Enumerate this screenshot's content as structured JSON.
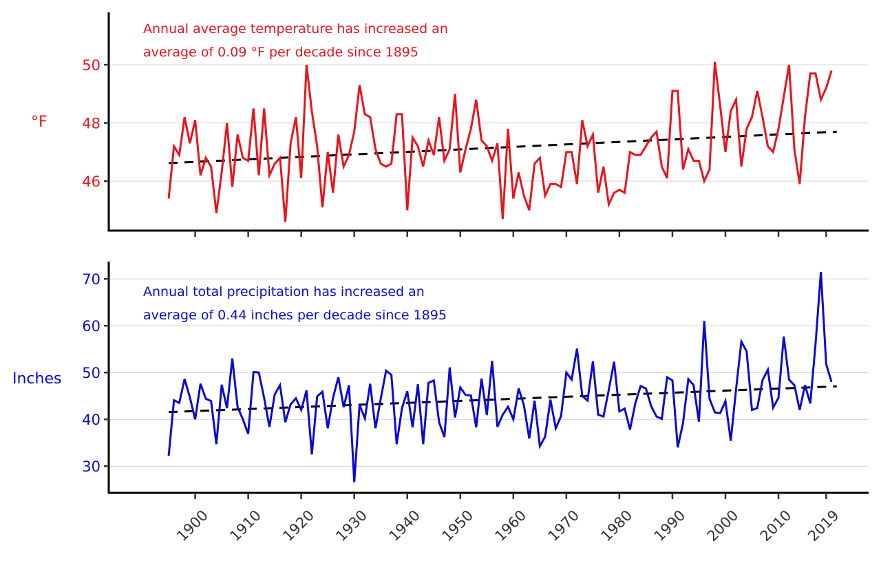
{
  "chart_data": [
    {
      "type": "line",
      "panel": "temperature",
      "title": "",
      "annotation_lines": [
        "Annual average temperature has increased an",
        "average of 0.09 °F per decade since 1895"
      ],
      "ylabel": "°F",
      "xlabel": "",
      "color": "#e8141c",
      "trend_color": "#000000",
      "ylim": [
        44.3,
        51.8
      ],
      "yticks": [
        46,
        48,
        50
      ],
      "ytick_labels": [
        "46",
        "48",
        "50"
      ],
      "grid": "horizontal",
      "x_start": 1895,
      "series": [
        {
          "name": "Annual average temperature",
          "values": [
            45.4,
            47.2,
            46.9,
            48.2,
            47.3,
            48.1,
            46.2,
            46.8,
            46.5,
            44.9,
            46.3,
            48.0,
            45.8,
            47.6,
            46.8,
            46.7,
            48.5,
            46.2,
            48.5,
            46.2,
            46.6,
            46.8,
            44.6,
            47.3,
            48.2,
            46.1,
            50.0,
            48.4,
            47.2,
            45.1,
            47.0,
            45.6,
            47.6,
            46.5,
            46.9,
            47.7,
            49.3,
            48.3,
            48.2,
            47.1,
            46.6,
            46.5,
            46.6,
            48.3,
            48.3,
            45.0,
            47.5,
            47.2,
            46.5,
            47.4,
            46.9,
            48.2,
            46.7,
            47.1,
            49.0,
            46.3,
            47.1,
            47.8,
            48.8,
            47.4,
            47.2,
            46.7,
            47.3,
            44.7,
            47.8,
            45.4,
            46.3,
            45.5,
            45.0,
            46.6,
            46.8,
            45.5,
            45.9,
            45.9,
            45.8,
            47.0,
            47.0,
            45.9,
            48.1,
            47.2,
            47.6,
            45.6,
            46.5,
            45.2,
            45.6,
            45.7,
            45.6,
            47.0,
            46.9,
            46.9,
            47.2,
            47.5,
            47.7,
            46.5,
            46.1,
            49.1,
            49.1,
            46.4,
            47.1,
            46.7,
            46.7,
            46.0,
            46.4,
            50.1,
            48.6,
            47.0,
            48.4,
            48.8,
            46.5,
            47.8,
            48.2,
            49.1,
            48.2,
            47.2,
            47.0,
            47.8,
            48.9,
            50.0,
            47.1,
            45.9,
            48.2,
            49.7,
            49.7,
            48.8,
            49.2,
            49.8
          ]
        },
        {
          "name": "Linear trend",
          "style": "dashed",
          "start": [
            1895,
            46.62
          ],
          "end": [
            2021,
            47.7
          ]
        }
      ]
    },
    {
      "type": "line",
      "panel": "precipitation",
      "title": "",
      "annotation_lines": [
        "Annual total precipitation has increased an",
        "average of 0.44 inches per decade since 1895"
      ],
      "ylabel": "Inches",
      "xlabel": "",
      "color": "#0a0ad2",
      "trend_color": "#000000",
      "ylim": [
        24.3,
        73.7
      ],
      "yticks": [
        30,
        40,
        50,
        60,
        70
      ],
      "ytick_labels": [
        "30",
        "40",
        "50",
        "60",
        "70"
      ],
      "grid": "horizontal",
      "x_start": 1895,
      "series": [
        {
          "name": "Annual total precipitation",
          "values": [
            32.2,
            44.1,
            43.5,
            48.6,
            44.7,
            40.0,
            47.6,
            44.4,
            43.9,
            34.7,
            47.4,
            42.4,
            53.0,
            42.6,
            40.0,
            36.9,
            50.1,
            50.0,
            44.6,
            38.4,
            45.3,
            47.3,
            39.4,
            43.2,
            44.5,
            42.0,
            46.2,
            32.5,
            44.9,
            45.9,
            38.1,
            44.6,
            49.0,
            42.6,
            47.3,
            26.6,
            43.1,
            40.2,
            47.6,
            38.1,
            44.4,
            50.4,
            49.5,
            34.7,
            42.4,
            46.0,
            38.3,
            47.5,
            34.7,
            47.8,
            48.3,
            39.4,
            36.2,
            51.1,
            40.4,
            46.8,
            45.2,
            45.1,
            38.3,
            48.7,
            40.9,
            52.5,
            38.4,
            41.0,
            42.7,
            40.0,
            46.6,
            43.0,
            35.9,
            44.0,
            34.3,
            36.3,
            44.2,
            38.1,
            40.7,
            50.0,
            48.5,
            55.1,
            45.0,
            44.0,
            52.4,
            41.0,
            40.6,
            46.3,
            52.3,
            41.7,
            42.3,
            37.8,
            43.4,
            47.1,
            46.6,
            42.8,
            40.6,
            40.1,
            49.0,
            48.3,
            34.0,
            39.2,
            48.6,
            47.3,
            39.5,
            61.0,
            44.4,
            41.5,
            41.3,
            43.9,
            35.4,
            46.4,
            56.6,
            54.5,
            42.0,
            42.4,
            48.4,
            50.6,
            42.5,
            44.6,
            57.7,
            48.5,
            47.3,
            42.0,
            47.3,
            43.4,
            56.2,
            71.5,
            51.8,
            48.0
          ]
        },
        {
          "name": "Linear trend",
          "style": "dashed",
          "start": [
            1895,
            41.55
          ],
          "end": [
            2021,
            47.05
          ]
        }
      ]
    }
  ],
  "x_axis": {
    "xlim": [
      1883.7,
      2027.0
    ],
    "ticks": [
      1900,
      1910,
      1920,
      1930,
      1940,
      1950,
      1960,
      1970,
      1980,
      1990,
      2000,
      2010,
      2019
    ],
    "tick_labels": [
      "1900",
      "1910",
      "1920",
      "1930",
      "1940",
      "1950",
      "1960",
      "1970",
      "1980",
      "1990",
      "2000",
      "2010",
      "2019"
    ],
    "label_color": "#333333"
  }
}
